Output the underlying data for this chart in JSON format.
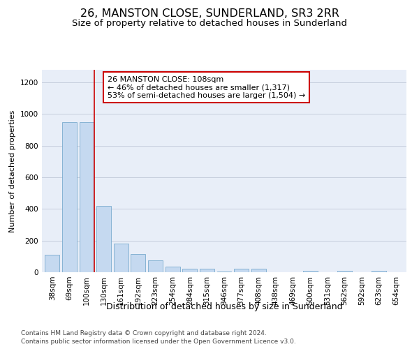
{
  "title": "26, MANSTON CLOSE, SUNDERLAND, SR3 2RR",
  "subtitle": "Size of property relative to detached houses in Sunderland",
  "xlabel": "Distribution of detached houses by size in Sunderland",
  "ylabel": "Number of detached properties",
  "categories": [
    "38sqm",
    "69sqm",
    "100sqm",
    "130sqm",
    "161sqm",
    "192sqm",
    "223sqm",
    "254sqm",
    "284sqm",
    "315sqm",
    "346sqm",
    "377sqm",
    "408sqm",
    "438sqm",
    "469sqm",
    "500sqm",
    "531sqm",
    "562sqm",
    "592sqm",
    "623sqm",
    "654sqm"
  ],
  "values": [
    110,
    950,
    950,
    420,
    180,
    115,
    75,
    35,
    20,
    20,
    5,
    20,
    20,
    0,
    0,
    8,
    0,
    8,
    0,
    8,
    0
  ],
  "bar_color": "#c5d9f0",
  "bar_edge_color": "#7aabcf",
  "vline_color": "#cc0000",
  "vline_x": 2.43,
  "annotation_text": "26 MANSTON CLOSE: 108sqm\n← 46% of detached houses are smaller (1,317)\n53% of semi-detached houses are larger (1,504) →",
  "annotation_box_color": "#ffffff",
  "annotation_box_edge": "#cc0000",
  "ylim": [
    0,
    1280
  ],
  "yticks": [
    0,
    200,
    400,
    600,
    800,
    1000,
    1200
  ],
  "background_color": "#e8eef8",
  "footer_line1": "Contains HM Land Registry data © Crown copyright and database right 2024.",
  "footer_line2": "Contains public sector information licensed under the Open Government Licence v3.0.",
  "title_fontsize": 11.5,
  "subtitle_fontsize": 9.5,
  "xlabel_fontsize": 9,
  "ylabel_fontsize": 8,
  "tick_fontsize": 7.5,
  "annotation_fontsize": 8,
  "footer_fontsize": 6.5
}
